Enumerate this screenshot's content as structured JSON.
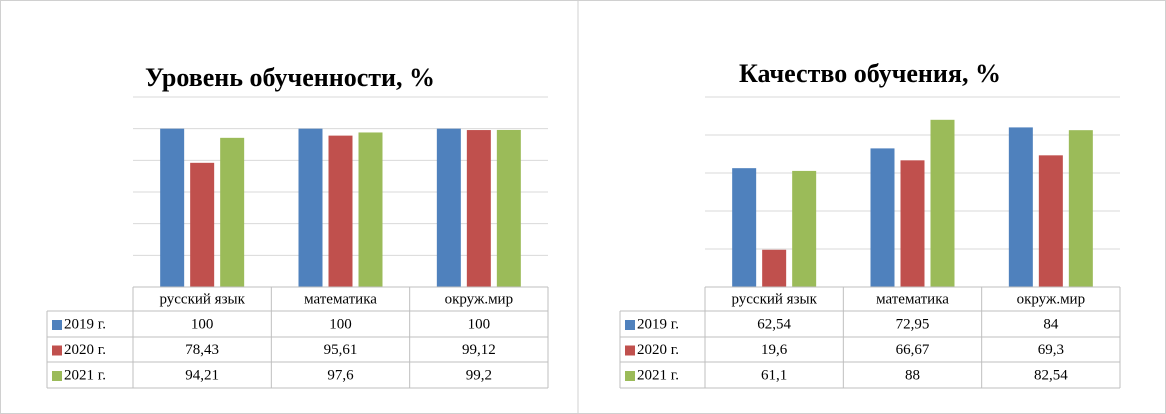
{
  "chart_data": [
    {
      "type": "bar",
      "title": "Уровень обученности, %",
      "categories": [
        "русский язык",
        "математика",
        "окруж.мир"
      ],
      "series": [
        {
          "name": "2019 г.",
          "color": "#4f81bd",
          "values": [
            100,
            100,
            100
          ],
          "value_labels": [
            "100",
            "100",
            "100"
          ]
        },
        {
          "name": "2020 г.",
          "color": "#c0504d",
          "values": [
            78.43,
            95.61,
            99.12
          ],
          "value_labels": [
            "78,43",
            "95,61",
            "99,12"
          ]
        },
        {
          "name": "2021 г.",
          "color": "#9bbb59",
          "values": [
            94.21,
            97.6,
            99.2
          ],
          "value_labels": [
            "94,21",
            "97,6",
            "99,2"
          ]
        }
      ],
      "ylim": [
        0,
        120
      ],
      "yticks": [
        0,
        20,
        40,
        60,
        80,
        100,
        120
      ],
      "grid": true
    },
    {
      "type": "bar",
      "title": "Качество обучения, %",
      "categories": [
        "русский язык",
        "математика",
        "окруж.мир"
      ],
      "series": [
        {
          "name": "2019 г.",
          "color": "#4f81bd",
          "values": [
            62.54,
            72.95,
            84
          ],
          "value_labels": [
            "62,54",
            "72,95",
            "84"
          ]
        },
        {
          "name": "2020 г.",
          "color": "#c0504d",
          "values": [
            19.6,
            66.67,
            69.3
          ],
          "value_labels": [
            "19,6",
            "66,67",
            "69,3"
          ]
        },
        {
          "name": "2021 г.",
          "color": "#9bbb59",
          "values": [
            61.1,
            88,
            82.54
          ],
          "value_labels": [
            "61,1",
            "88",
            "82,54"
          ]
        }
      ],
      "ylim": [
        0,
        100
      ],
      "yticks": [
        0,
        20,
        40,
        60,
        80,
        100
      ],
      "grid": true
    }
  ]
}
